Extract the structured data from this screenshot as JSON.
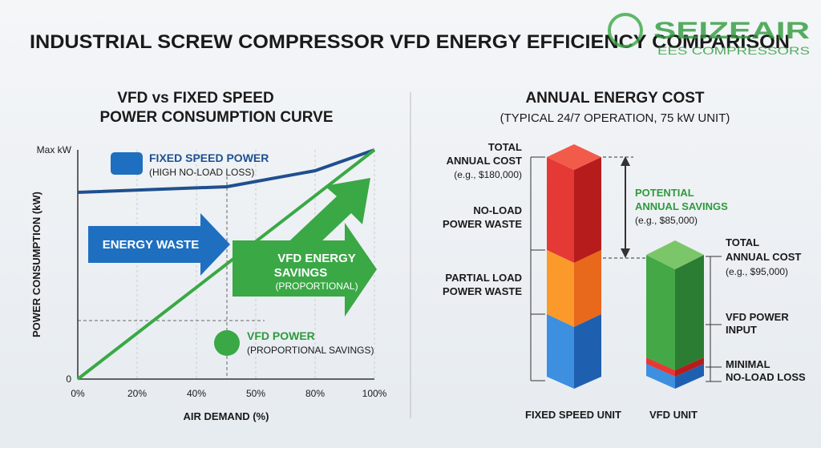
{
  "title": "INDUSTRIAL SCREW COMPRESSOR VFD ENERGY EFFICIENCY COMPARISON",
  "logo": {
    "name": "SEIZEAIR",
    "tagline": "EES COMPRESSORS"
  },
  "left": {
    "title_lines": [
      "VFD vs FIXED SPEED",
      "POWER CONSUMPTION CURVE"
    ],
    "y_axis_label": "POWER CONSUMPTION (kW)",
    "x_axis_label": "AIR DEMAND (%)",
    "y_ticks": [
      "Max kW",
      "0"
    ],
    "x_ticks": [
      "0%",
      "20%",
      "40%",
      "50%",
      "80%",
      "100%"
    ],
    "fixed_label": "FIXED SPEED POWER",
    "fixed_sub": "(HIGH NO-LOAD LOSS)",
    "vfd_label": "VFD POWER",
    "vfd_sub": "(PROPORTIONAL SAVINGS)",
    "waste_label": "ENERGY WASTE",
    "savings_lines": [
      "VFD ENERGY",
      "SAVINGS",
      "(PROPORTIONAL)"
    ]
  },
  "right": {
    "title": "ANNUAL ENERGY COST",
    "subtitle": "(TYPICAL 24/7 OPERATION, 75 kW UNIT)",
    "fixed_total": [
      "TOTAL",
      "ANNUAL COST",
      "(e.g., $180,000)"
    ],
    "no_load": [
      "NO-LOAD",
      "POWER WASTE"
    ],
    "partial_load": [
      "PARTIAL LOAD",
      "POWER WASTE"
    ],
    "savings": [
      "POTENTIAL",
      "ANNUAL SAVINGS",
      "(e.g., $85,000)"
    ],
    "vfd_total": [
      "TOTAL",
      "ANNUAL COST",
      "(e.g., $95,000)"
    ],
    "vfd_input": [
      "VFD POWER",
      "INPUT"
    ],
    "minimal": [
      "MINIMAL",
      "NO-LOAD LOSS"
    ],
    "fixed_unit": "FIXED SPEED UNIT",
    "vfd_unit": "VFD UNIT"
  }
}
